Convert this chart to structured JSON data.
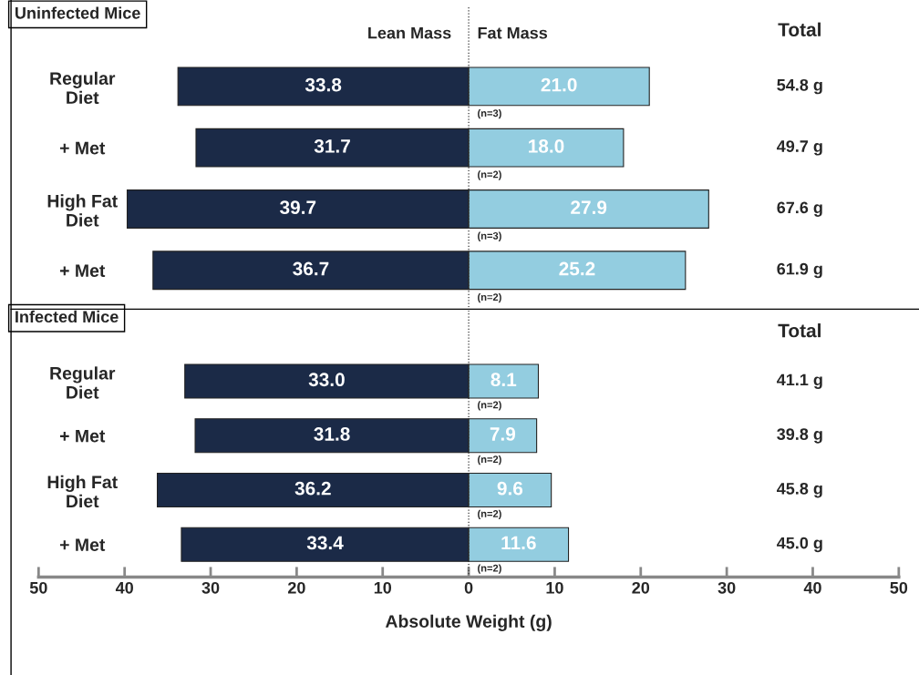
{
  "chart_data": [
    {
      "type": "bar",
      "title": "Uninfected Mice",
      "orientation": "horizontal",
      "categories": [
        "Regular Diet",
        "+ Met",
        "High Fat Diet",
        "+ Met"
      ],
      "series": [
        {
          "name": "Lean Mass",
          "color": "#1b2a47",
          "values": [
            33.8,
            31.7,
            39.7,
            36.7
          ],
          "base": [
            -33.8,
            -31.7,
            -39.7,
            -36.7
          ],
          "value_labels": [
            "33.8",
            "31.7",
            "39.7",
            "36.7"
          ]
        },
        {
          "name": "Fat Mass",
          "color": "#93cde0",
          "values": [
            21.0,
            18.0,
            27.9,
            25.2
          ],
          "base": [
            0,
            0,
            0,
            0
          ],
          "value_labels": [
            "21.0",
            "18.0",
            "27.9",
            "25.2"
          ]
        }
      ],
      "annotations": [
        "Total",
        "(n=3)",
        "(n=2)",
        "(n=3)",
        "(n=2)",
        "54.8 g",
        "49.7 g",
        "67.6 g",
        "61.9 g"
      ],
      "xlim": [
        -50,
        50
      ],
      "ref_lines": [
        {
          "axis": "x",
          "value": 0,
          "line_style": "dotted"
        }
      ],
      "tick_labels": "y"
    },
    {
      "type": "bar",
      "title": "Infected Mice",
      "orientation": "horizontal",
      "categories": [
        "Regular Diet",
        "+ Met",
        "High Fat Diet",
        "+ Met"
      ],
      "series": [
        {
          "color": "#1b2a47",
          "values": [
            33.0,
            31.8,
            36.2,
            33.4
          ],
          "base": [
            -33.0,
            -31.8,
            -36.2,
            -33.4
          ],
          "value_labels": [
            "33.0",
            "31.8",
            "36.2",
            "33.4"
          ]
        },
        {
          "color": "#93cde0",
          "values": [
            8.1,
            7.9,
            9.6,
            11.6
          ],
          "base": [
            0,
            0,
            0,
            0
          ],
          "value_labels": [
            "8.1",
            "7.9",
            "9.6",
            "11.6"
          ]
        }
      ],
      "annotations": [
        "Total",
        "(n=2)",
        "(n=2)",
        "(n=2)",
        "(n=2)",
        "41.1 g",
        "39.8 g",
        "45.8 g",
        "45.0 g"
      ],
      "xlabel": "Absolute Weight (g)",
      "xlim": [
        -50,
        50
      ],
      "xticks": [
        {
          "value": -50,
          "label": "50"
        },
        {
          "value": -40,
          "label": "40"
        },
        {
          "value": -30,
          "label": "30"
        },
        {
          "value": -20,
          "label": "20"
        },
        {
          "value": -10,
          "label": "10"
        },
        0,
        10,
        20,
        30,
        40,
        50
      ],
      "ref_lines": [
        {
          "axis": "x",
          "value": 0,
          "line_style": "dotted"
        }
      ]
    }
  ]
}
